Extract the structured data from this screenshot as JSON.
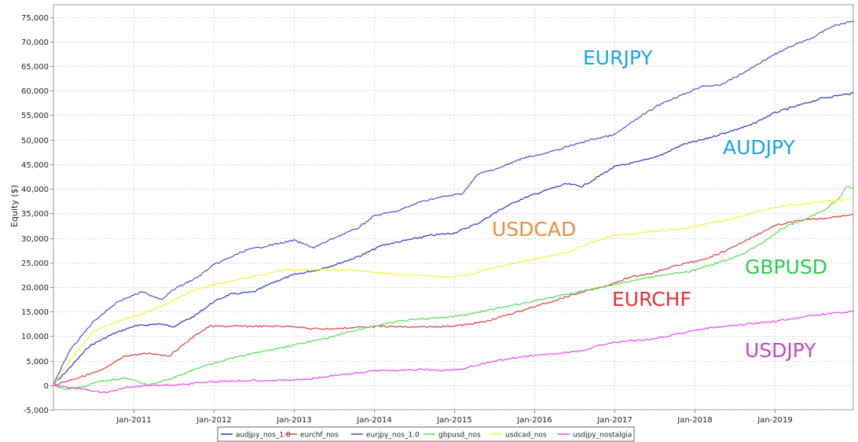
{
  "chart_data": {
    "type": "line",
    "title": "",
    "xlabel": "",
    "ylabel": "Equity ($)",
    "ylim": [
      -5000,
      77500
    ],
    "xlim": [
      2010.0,
      2019.98
    ],
    "y_ticks": [
      -5000,
      0,
      5000,
      10000,
      15000,
      20000,
      25000,
      30000,
      35000,
      40000,
      45000,
      50000,
      55000,
      60000,
      65000,
      70000,
      75000
    ],
    "y_tick_labels": [
      "-5,000",
      "0",
      "5,000",
      "10,000",
      "15,000",
      "20,000",
      "25,000",
      "30,000",
      "35,000",
      "40,000",
      "45,000",
      "50,000",
      "55,000",
      "60,000",
      "65,000",
      "70,000",
      "75,000"
    ],
    "x_ticks": [
      2011,
      2012,
      2013,
      2014,
      2015,
      2016,
      2017,
      2018,
      2019
    ],
    "x_tick_labels": [
      "Jan-2011",
      "Jan-2012",
      "Jan-2013",
      "Jan-2014",
      "Jan-2015",
      "Jan-2016",
      "Jan-2017",
      "Jan-2018",
      "Jan-2019"
    ],
    "grid": true,
    "legend_position": "bottom",
    "series": [
      {
        "name": "audjpy_nos_1.0",
        "color": "#2b35c0",
        "x": [
          2010.0,
          2010.2,
          2010.45,
          2010.75,
          2011.0,
          2011.3,
          2011.5,
          2011.75,
          2012.0,
          2012.2,
          2012.5,
          2012.75,
          2013.0,
          2013.3,
          2013.6,
          2013.85,
          2014.1,
          2014.4,
          2014.7,
          2015.0,
          2015.3,
          2015.6,
          2015.85,
          2016.2,
          2016.4,
          2016.6,
          2016.85,
          2017.0,
          2017.3,
          2017.6,
          2017.85,
          2018.1,
          2018.4,
          2018.7,
          2019.0,
          2019.3,
          2019.6,
          2019.98
        ],
        "y": [
          0,
          3500,
          8000,
          10500,
          12000,
          12500,
          12000,
          14000,
          17000,
          18500,
          19000,
          21000,
          22500,
          23500,
          25000,
          26500,
          28500,
          29500,
          30500,
          31000,
          33000,
          36000,
          38000,
          40000,
          41000,
          40500,
          43000,
          44500,
          45500,
          47000,
          49000,
          50000,
          51500,
          53000,
          55500,
          57000,
          58500,
          59500
        ]
      },
      {
        "name": "eurchf_nos",
        "color": "#e03c3c",
        "x": [
          2010.0,
          2010.3,
          2010.6,
          2010.9,
          2011.2,
          2011.45,
          2011.6,
          2011.8,
          2011.95,
          2012.3,
          2012.7,
          2013.0,
          2013.2,
          2013.5,
          2013.8,
          2014.1,
          2014.5,
          2014.9,
          2015.1,
          2015.4,
          2015.7,
          2016.0,
          2016.3,
          2016.6,
          2016.85,
          2017.2,
          2017.5,
          2017.8,
          2018.1,
          2018.4,
          2018.7,
          2019.0,
          2019.3,
          2019.6,
          2019.98
        ],
        "y": [
          0,
          1500,
          3000,
          6000,
          6500,
          6000,
          8000,
          10500,
          12000,
          12000,
          12000,
          12000,
          11500,
          11500,
          11800,
          12000,
          11800,
          12000,
          12200,
          13000,
          14500,
          16000,
          17500,
          19000,
          20000,
          22000,
          23000,
          24500,
          25500,
          27500,
          30000,
          32500,
          33500,
          34000,
          34800
        ]
      },
      {
        "name": "eurjpy_nos_1.0",
        "color": "#4a4fd0",
        "x": [
          2010.0,
          2010.2,
          2010.5,
          2010.8,
          2011.1,
          2011.35,
          2011.5,
          2011.8,
          2012.0,
          2012.4,
          2012.7,
          2013.0,
          2013.25,
          2013.5,
          2013.8,
          2014.0,
          2014.3,
          2014.6,
          2014.9,
          2015.1,
          2015.3,
          2015.6,
          2015.9,
          2016.1,
          2016.4,
          2016.7,
          2017.0,
          2017.3,
          2017.6,
          2017.9,
          2018.1,
          2018.3,
          2018.6,
          2018.9,
          2019.2,
          2019.5,
          2019.7,
          2019.98
        ],
        "y": [
          0,
          7000,
          13000,
          17000,
          19000,
          17500,
          19500,
          22000,
          24500,
          27500,
          28500,
          29500,
          28000,
          30000,
          32000,
          34500,
          35500,
          37500,
          38500,
          39000,
          43000,
          44500,
          46500,
          47000,
          48500,
          50000,
          51000,
          54500,
          57500,
          59500,
          61000,
          61000,
          63500,
          66500,
          69000,
          71000,
          73000,
          74200
        ]
      },
      {
        "name": "gbpusd_nos",
        "color": "#4ee04e",
        "x": [
          2010.0,
          2010.15,
          2010.35,
          2010.6,
          2010.9,
          2011.2,
          2011.5,
          2011.8,
          2012.1,
          2012.5,
          2012.8,
          2013.1,
          2013.4,
          2013.7,
          2014.0,
          2014.3,
          2014.6,
          2014.9,
          2015.2,
          2015.5,
          2015.8,
          2016.1,
          2016.4,
          2016.7,
          2017.0,
          2017.3,
          2017.6,
          2017.9,
          2018.2,
          2018.5,
          2018.8,
          2019.1,
          2019.4,
          2019.6,
          2019.8,
          2019.9,
          2019.98
        ],
        "y": [
          0,
          -800,
          -300,
          800,
          1500,
          0,
          1500,
          3500,
          5000,
          6500,
          7500,
          8500,
          9500,
          11000,
          12000,
          13000,
          13500,
          13800,
          14500,
          15500,
          16500,
          17500,
          18500,
          19500,
          20500,
          21500,
          22500,
          23000,
          24500,
          26000,
          28500,
          32000,
          34000,
          35500,
          38000,
          40500,
          40000
        ]
      },
      {
        "name": "usdcad_nos",
        "color": "#f2f23a",
        "x": [
          2010.0,
          2010.2,
          2010.5,
          2010.8,
          2011.1,
          2011.4,
          2011.7,
          2012.0,
          2012.3,
          2012.6,
          2012.9,
          2013.1,
          2013.4,
          2013.7,
          2014.0,
          2014.3,
          2014.6,
          2014.9,
          2015.2,
          2015.5,
          2015.8,
          2016.1,
          2016.4,
          2016.7,
          2017.0,
          2017.3,
          2017.6,
          2017.9,
          2018.2,
          2018.5,
          2018.8,
          2019.1,
          2019.4,
          2019.7,
          2019.98
        ],
        "y": [
          0,
          5000,
          11000,
          13000,
          14500,
          16500,
          19000,
          20500,
          21500,
          22500,
          23500,
          23500,
          23500,
          23500,
          23000,
          22500,
          22500,
          22000,
          22500,
          24000,
          25000,
          26000,
          27000,
          29000,
          30500,
          31000,
          31500,
          32000,
          33000,
          34000,
          35500,
          36500,
          37000,
          37500,
          38000
        ]
      },
      {
        "name": "usdjpy_nostalgia",
        "color": "#ee44ee",
        "x": [
          2010.0,
          2010.2,
          2010.45,
          2010.65,
          2010.9,
          2011.2,
          2011.5,
          2011.8,
          2012.1,
          2012.5,
          2012.9,
          2013.2,
          2013.5,
          2013.8,
          2014.0,
          2014.3,
          2014.6,
          2014.9,
          2015.1,
          2015.4,
          2015.7,
          2016.0,
          2016.3,
          2016.6,
          2016.9,
          2017.2,
          2017.5,
          2017.8,
          2018.1,
          2018.4,
          2018.7,
          2019.0,
          2019.3,
          2019.6,
          2019.98
        ],
        "y": [
          0,
          -500,
          -1000,
          -1500,
          -500,
          0,
          0,
          500,
          800,
          1000,
          1000,
          1200,
          2000,
          2500,
          3000,
          3000,
          3200,
          3000,
          3300,
          4500,
          5500,
          6000,
          6500,
          7000,
          8500,
          9000,
          9500,
          10500,
          11500,
          12000,
          12500,
          13000,
          13800,
          14500,
          15000
        ]
      }
    ],
    "annotations": [
      {
        "text": "EURJPY",
        "color": "#1aa3e8"
      },
      {
        "text": "AUDJPY",
        "color": "#1aa3e8"
      },
      {
        "text": "USDCAD",
        "color": "#f08a3a"
      },
      {
        "text": "GBPUSD",
        "color": "#2ccc4a"
      },
      {
        "text": "EURCHF",
        "color": "#e8303a"
      },
      {
        "text": "USDJPY",
        "color": "#c448c4"
      }
    ]
  }
}
